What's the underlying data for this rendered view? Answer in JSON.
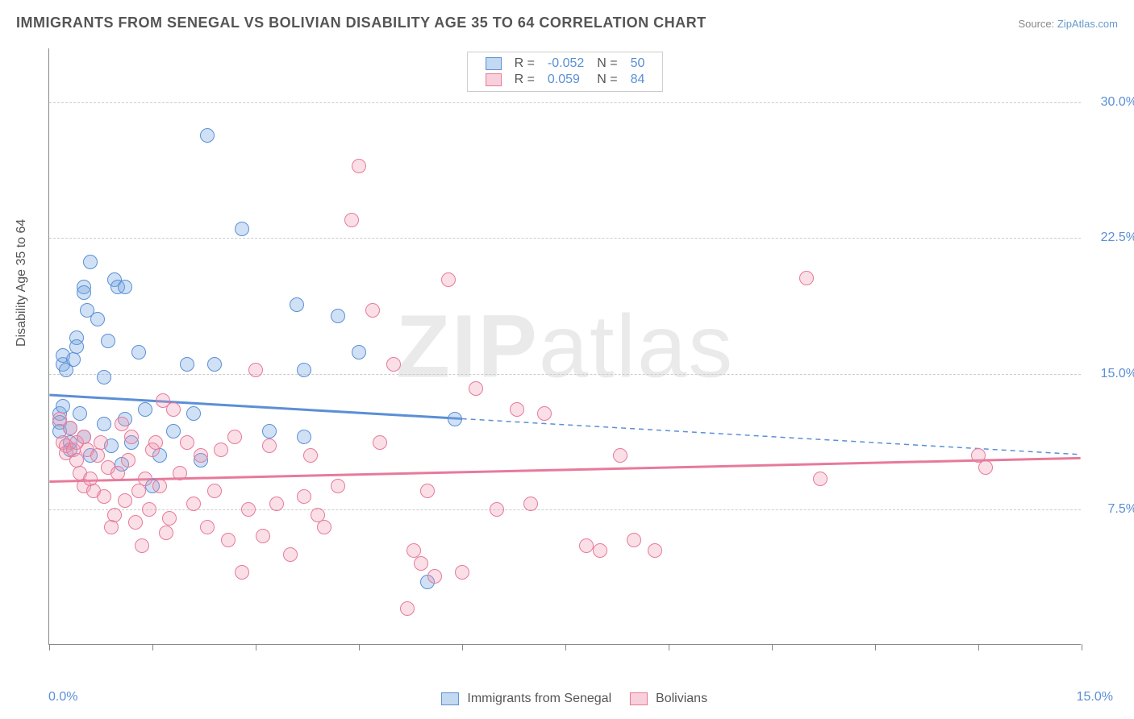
{
  "title": "IMMIGRANTS FROM SENEGAL VS BOLIVIAN DISABILITY AGE 35 TO 64 CORRELATION CHART",
  "source_prefix": "Source: ",
  "source_link": "ZipAtlas.com",
  "yaxis_title": "Disability Age 35 to 64",
  "watermark_a": "ZIP",
  "watermark_b": "atlas",
  "chart": {
    "type": "scatter",
    "xlim": [
      0,
      15
    ],
    "ylim": [
      0,
      33
    ],
    "xtick_step": 1.5,
    "yticks": [
      7.5,
      15.0,
      22.5,
      30.0
    ],
    "ytick_labels": [
      "7.5%",
      "15.0%",
      "22.5%",
      "30.0%"
    ],
    "x_label_min": "0.0%",
    "x_label_max": "15.0%",
    "background_color": "#ffffff",
    "grid_color": "#cccccc",
    "series": [
      {
        "name": "Immigrants from Senegal",
        "color_fill": "rgba(120,170,225,0.35)",
        "color_stroke": "#5b8fd6",
        "css": "blue",
        "R": "-0.052",
        "N": "50",
        "regression": {
          "x1": 0,
          "y1": 13.8,
          "x2": 15,
          "y2": 10.5,
          "solid_until_x": 6.0
        },
        "points": [
          [
            0.15,
            12.8
          ],
          [
            0.15,
            12.3
          ],
          [
            0.15,
            11.8
          ],
          [
            0.2,
            13.2
          ],
          [
            0.2,
            15.5
          ],
          [
            0.2,
            16.0
          ],
          [
            0.25,
            15.2
          ],
          [
            0.3,
            12.0
          ],
          [
            0.3,
            11.2
          ],
          [
            0.3,
            10.8
          ],
          [
            0.35,
            15.8
          ],
          [
            0.4,
            17.0
          ],
          [
            0.4,
            16.5
          ],
          [
            0.45,
            12.8
          ],
          [
            0.5,
            19.8
          ],
          [
            0.5,
            19.5
          ],
          [
            0.5,
            11.5
          ],
          [
            0.55,
            18.5
          ],
          [
            0.6,
            21.2
          ],
          [
            0.6,
            10.5
          ],
          [
            0.7,
            18.0
          ],
          [
            0.8,
            14.8
          ],
          [
            0.8,
            12.2
          ],
          [
            0.85,
            16.8
          ],
          [
            0.9,
            11.0
          ],
          [
            0.95,
            20.2
          ],
          [
            1.0,
            19.8
          ],
          [
            1.05,
            10.0
          ],
          [
            1.1,
            19.8
          ],
          [
            1.1,
            12.5
          ],
          [
            1.2,
            11.2
          ],
          [
            1.3,
            16.2
          ],
          [
            1.4,
            13.0
          ],
          [
            1.5,
            8.8
          ],
          [
            1.6,
            10.5
          ],
          [
            1.8,
            11.8
          ],
          [
            2.0,
            15.5
          ],
          [
            2.1,
            12.8
          ],
          [
            2.2,
            10.2
          ],
          [
            2.3,
            28.2
          ],
          [
            2.4,
            15.5
          ],
          [
            2.8,
            23.0
          ],
          [
            3.2,
            11.8
          ],
          [
            3.6,
            18.8
          ],
          [
            3.7,
            15.2
          ],
          [
            3.7,
            11.5
          ],
          [
            4.2,
            18.2
          ],
          [
            4.5,
            16.2
          ],
          [
            5.5,
            3.5
          ],
          [
            5.9,
            12.5
          ]
        ]
      },
      {
        "name": "Bolivians",
        "color_fill": "rgba(240,150,175,0.30)",
        "color_stroke": "#e77a9b",
        "css": "pink",
        "R": "0.059",
        "N": "84",
        "regression": {
          "x1": 0,
          "y1": 9.0,
          "x2": 15,
          "y2": 10.3,
          "solid_until_x": 15
        },
        "points": [
          [
            0.15,
            12.5
          ],
          [
            0.2,
            11.2
          ],
          [
            0.25,
            11.0
          ],
          [
            0.25,
            10.6
          ],
          [
            0.3,
            12.0
          ],
          [
            0.35,
            10.8
          ],
          [
            0.4,
            11.2
          ],
          [
            0.4,
            10.2
          ],
          [
            0.45,
            9.5
          ],
          [
            0.5,
            11.5
          ],
          [
            0.5,
            8.8
          ],
          [
            0.55,
            10.8
          ],
          [
            0.6,
            9.2
          ],
          [
            0.65,
            8.5
          ],
          [
            0.7,
            10.5
          ],
          [
            0.75,
            11.2
          ],
          [
            0.8,
            8.2
          ],
          [
            0.85,
            9.8
          ],
          [
            0.9,
            6.5
          ],
          [
            0.95,
            7.2
          ],
          [
            1.0,
            9.5
          ],
          [
            1.05,
            12.2
          ],
          [
            1.1,
            8.0
          ],
          [
            1.15,
            10.2
          ],
          [
            1.2,
            11.5
          ],
          [
            1.25,
            6.8
          ],
          [
            1.3,
            8.5
          ],
          [
            1.35,
            5.5
          ],
          [
            1.4,
            9.2
          ],
          [
            1.45,
            7.5
          ],
          [
            1.5,
            10.8
          ],
          [
            1.55,
            11.2
          ],
          [
            1.6,
            8.8
          ],
          [
            1.65,
            13.5
          ],
          [
            1.7,
            6.2
          ],
          [
            1.75,
            7.0
          ],
          [
            1.8,
            13.0
          ],
          [
            1.9,
            9.5
          ],
          [
            2.0,
            11.2
          ],
          [
            2.1,
            7.8
          ],
          [
            2.2,
            10.5
          ],
          [
            2.3,
            6.5
          ],
          [
            2.4,
            8.5
          ],
          [
            2.5,
            10.8
          ],
          [
            2.6,
            5.8
          ],
          [
            2.7,
            11.5
          ],
          [
            2.8,
            4.0
          ],
          [
            2.9,
            7.5
          ],
          [
            3.0,
            15.2
          ],
          [
            3.1,
            6.0
          ],
          [
            3.2,
            11.0
          ],
          [
            3.3,
            7.8
          ],
          [
            3.5,
            5.0
          ],
          [
            3.7,
            8.2
          ],
          [
            3.8,
            10.5
          ],
          [
            3.9,
            7.2
          ],
          [
            4.0,
            6.5
          ],
          [
            4.2,
            8.8
          ],
          [
            4.4,
            23.5
          ],
          [
            4.5,
            26.5
          ],
          [
            4.7,
            18.5
          ],
          [
            4.8,
            11.2
          ],
          [
            5.0,
            15.5
          ],
          [
            5.2,
            2.0
          ],
          [
            5.3,
            5.2
          ],
          [
            5.4,
            4.5
          ],
          [
            5.5,
            8.5
          ],
          [
            5.6,
            3.8
          ],
          [
            5.8,
            20.2
          ],
          [
            6.0,
            4.0
          ],
          [
            6.2,
            14.2
          ],
          [
            6.5,
            7.5
          ],
          [
            6.8,
            13.0
          ],
          [
            7.0,
            7.8
          ],
          [
            7.2,
            12.8
          ],
          [
            7.8,
            5.5
          ],
          [
            8.0,
            5.2
          ],
          [
            8.3,
            10.5
          ],
          [
            8.5,
            5.8
          ],
          [
            8.8,
            5.2
          ],
          [
            11.0,
            20.3
          ],
          [
            11.2,
            9.2
          ],
          [
            13.5,
            10.5
          ],
          [
            13.6,
            9.8
          ]
        ]
      }
    ]
  },
  "legend_labels": {
    "R": "R =",
    "N": "N ="
  },
  "bottom_legend": [
    "Immigrants from Senegal",
    "Bolivians"
  ]
}
